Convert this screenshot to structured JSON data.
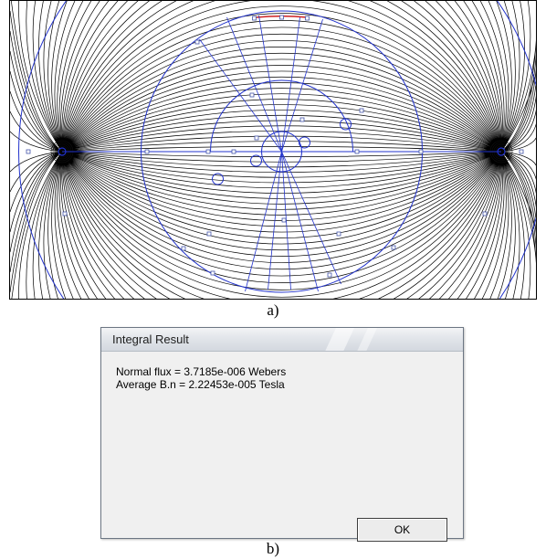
{
  "figure": {
    "caption_a": "a)",
    "caption_b": "b)"
  },
  "dialog": {
    "title": "Integral Result",
    "line1": "Normal flux = 3.7185e-006 Webers",
    "line2": "Average B.n = 2.22453e-005 Tesla",
    "ok_label": "OK"
  },
  "colors": {
    "flux_lines": "#000000",
    "geometry": "#2233cc",
    "highlight_arc": "#cc2222",
    "dialog_bg": "#f0f0f0"
  }
}
